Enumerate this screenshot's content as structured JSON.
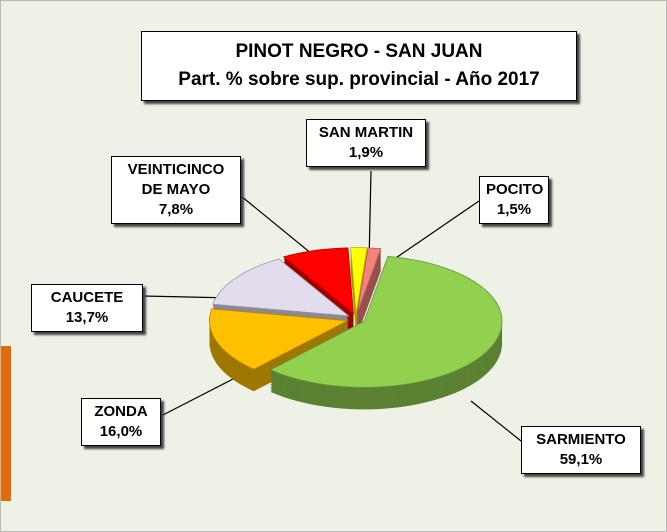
{
  "chart_data": {
    "type": "pie",
    "three_d": true,
    "title": "PINOT NEGRO - SAN JUAN",
    "subtitle": "Part. % sobre sup. provincial  - Año 2017",
    "categories": [
      "SAN MARTIN",
      "POCITO",
      "SARMIENTO",
      "ZONDA",
      "CAUCETE",
      "VEINTICINCO DE MAYO"
    ],
    "values": [
      1.9,
      1.5,
      59.1,
      16.0,
      13.7,
      7.8
    ],
    "value_labels": [
      "1,9%",
      "1,5%",
      "59,1%",
      "16,0%",
      "13,7%",
      "7,8%"
    ],
    "colors": [
      "#ffff00",
      "#f4817c",
      "#92d050",
      "#ffc000",
      "#e2dcec",
      "#ff0000"
    ]
  }
}
